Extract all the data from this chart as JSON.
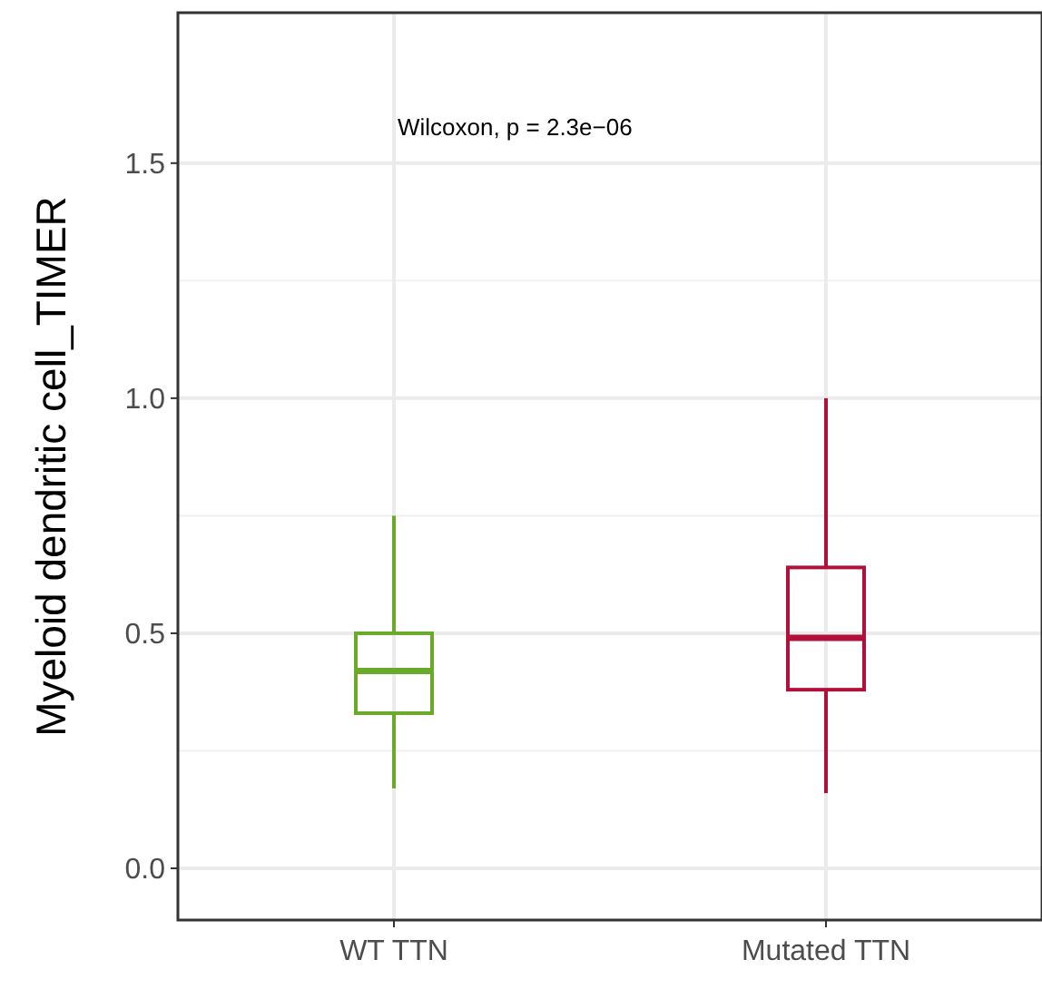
{
  "chart_data": {
    "type": "box",
    "ylabel": "Myeloid dendritic cell_TIMER",
    "categories": [
      "WT TTN",
      "Mutated TTN"
    ],
    "series": [
      {
        "color": "#6aaa2a",
        "boxes": [
          {
            "low": 0.17,
            "q1": 0.33,
            "median": 0.42,
            "q3": 0.5,
            "high": 0.75
          },
          null
        ]
      },
      {
        "color": "#b0103a",
        "boxes": [
          null,
          {
            "low": 0.16,
            "q1": 0.38,
            "median": 0.49,
            "q3": 0.64,
            "high": 1.0
          }
        ]
      }
    ],
    "ylim": [
      -0.11,
      1.82
    ],
    "yticks": [
      {
        "value": 0,
        "label": "0.0"
      },
      {
        "value": 0.5,
        "label": "0.5"
      },
      {
        "value": 1,
        "label": "1.0"
      },
      {
        "value": 1.5,
        "label": "1.5"
      }
    ],
    "grid": true,
    "annotations": [
      "Wilcoxon, p = 2.3e−06"
    ]
  }
}
